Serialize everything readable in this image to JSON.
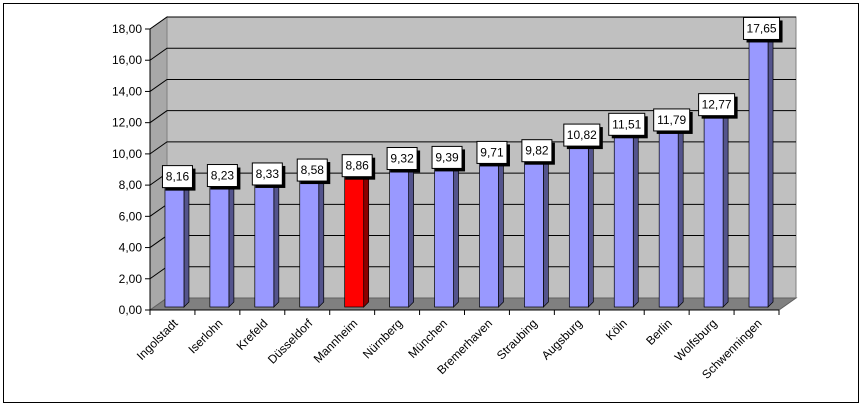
{
  "chart_data": {
    "type": "bar",
    "title": "",
    "xlabel": "",
    "ylabel": "",
    "categories": [
      "Ingolstadt",
      "Iserlohn",
      "Krefeld",
      "Düsseldorf",
      "Mannheim",
      "Nürnberg",
      "München",
      "Bremerhaven",
      "Straubing",
      "Augsburg",
      "Köln",
      "Berlin",
      "Wolfsburg",
      "Schwenningen"
    ],
    "values": [
      8.16,
      8.23,
      8.33,
      8.58,
      8.86,
      9.32,
      9.39,
      9.71,
      9.82,
      10.82,
      11.51,
      11.79,
      12.77,
      17.65
    ],
    "value_labels": [
      "8,16",
      "8,23",
      "8,33",
      "8,58",
      "8,86",
      "9,32",
      "9,39",
      "9,71",
      "9,82",
      "10,82",
      "11,51",
      "11,79",
      "12,77",
      "17,65"
    ],
    "ylim": [
      0,
      18
    ],
    "yticks": [
      "0,00",
      "2,00",
      "4,00",
      "6,00",
      "8,00",
      "10,00",
      "12,00",
      "14,00",
      "16,00",
      "18,00"
    ],
    "grid": true,
    "three_d": true,
    "colors": {
      "bar": "#9999ff",
      "highlight_bar": "#ff0000",
      "highlight_index": 4,
      "wall": "#c0c0c0",
      "floor": "#808080",
      "grid": "#000000"
    }
  }
}
